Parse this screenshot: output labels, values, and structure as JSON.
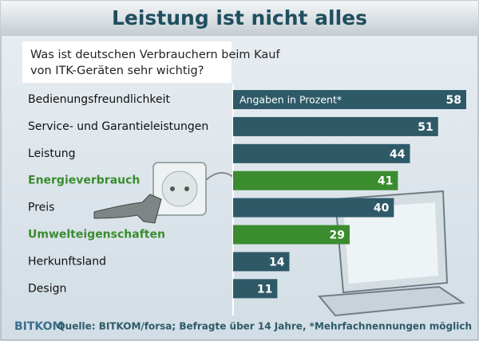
{
  "chart_data": {
    "type": "bar",
    "orientation": "horizontal",
    "title": "Leistung ist nicht alles",
    "subtitle": [
      "Was ist deutschen Verbrauchern beim Kauf",
      "von ITK-Geräten sehr wichtig?"
    ],
    "annotation": "Angaben in Prozent*",
    "categories": [
      "Bedienungsfreundlichkeit",
      "Service- und Garantieleistungen",
      "Leistung",
      "Energieverbrauch",
      "Preis",
      "Umwelteigenschaften",
      "Herkunftsland",
      "Design"
    ],
    "values": [
      58,
      51,
      44,
      41,
      40,
      29,
      14,
      11
    ],
    "colors": [
      "#2e5a68",
      "#2e5a68",
      "#2e5a68",
      "#3a8c2f",
      "#2e5a68",
      "#3a8c2f",
      "#2e5a68",
      "#2e5a68"
    ],
    "source": "Quelle: BITKOM/forsa; Befragte über 14 Jahre, *Mehrfachnennungen möglich",
    "logo": "BITKOM"
  }
}
